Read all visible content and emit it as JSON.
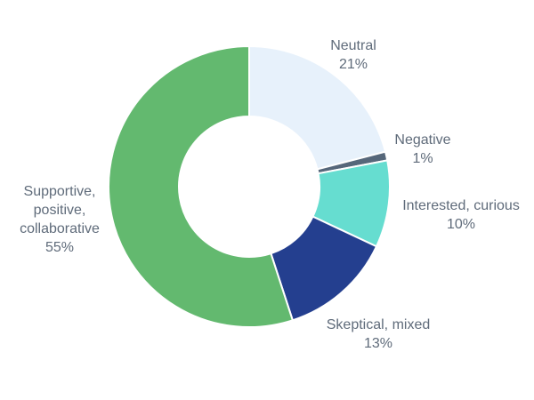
{
  "chart_data": {
    "type": "pie",
    "variant": "donut",
    "title": "",
    "slices": [
      {
        "lines": [
          "Neutral"
        ],
        "value_label": "21%",
        "value": 21,
        "color": "#e7f1fb"
      },
      {
        "lines": [
          "Negative"
        ],
        "value_label": "1%",
        "value": 1,
        "color": "#56677a"
      },
      {
        "lines": [
          "Interested, curious"
        ],
        "value_label": "10%",
        "value": 10,
        "color": "#66ddd0"
      },
      {
        "lines": [
          "Skeptical, mixed"
        ],
        "value_label": "13%",
        "value": 13,
        "color": "#243f8f"
      },
      {
        "lines": [
          "Supportive,",
          "positive,",
          "collaborative"
        ],
        "value_label": "55%",
        "value": 55,
        "color": "#63b96f"
      }
    ],
    "label_color": "#5f6b7a"
  }
}
